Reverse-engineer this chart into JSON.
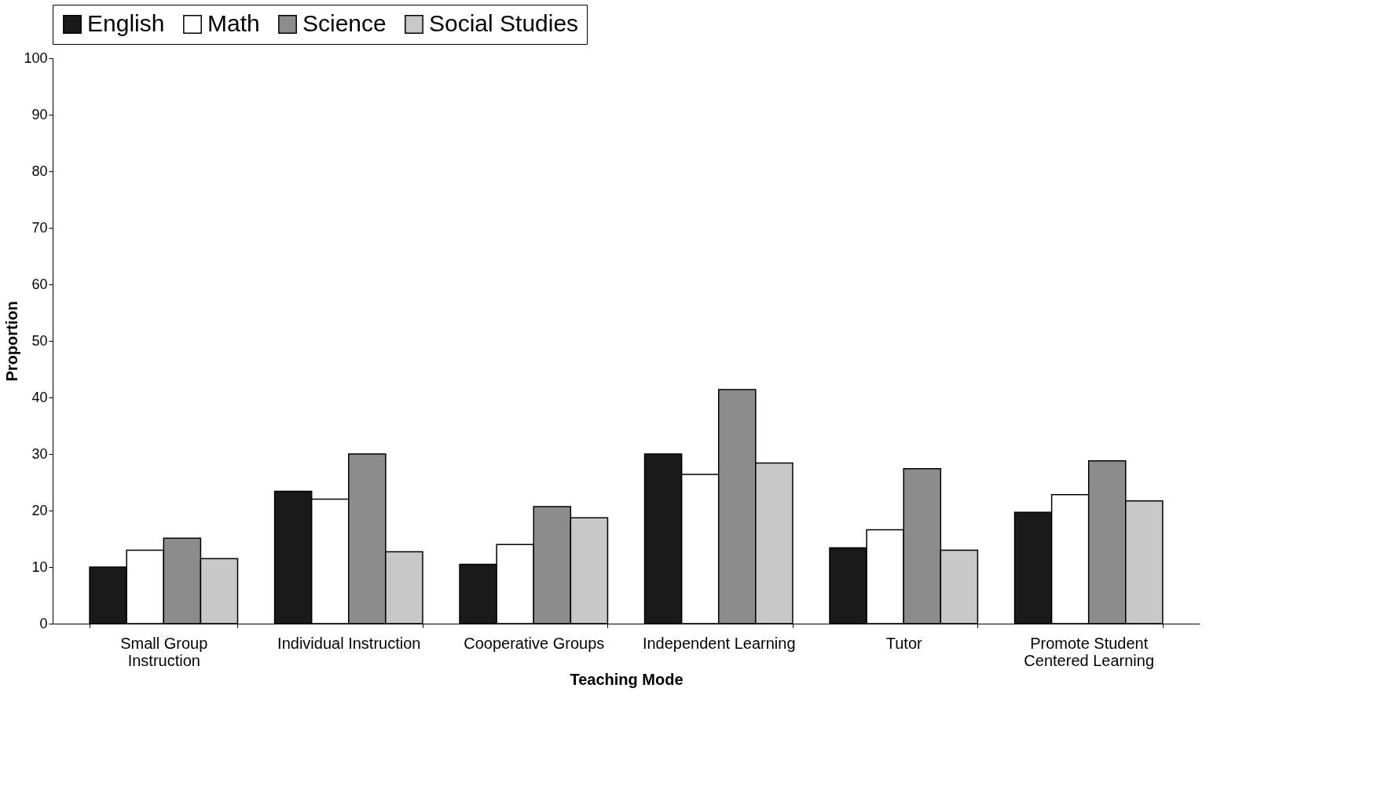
{
  "chart_data": {
    "type": "bar",
    "xlabel": "Teaching Mode",
    "ylabel": "Proportion",
    "categories": [
      "Small Group\nInstruction",
      "Individual Instruction",
      "Cooperative Groups",
      "Independent Learning",
      "Tutor",
      "Promote Student\nCentered Learning"
    ],
    "series": [
      {
        "name": "English",
        "color": "#1a1a1a",
        "values": [
          10,
          23.4,
          10.5,
          30,
          13.4,
          19.7
        ]
      },
      {
        "name": "Math",
        "color": "#ffffff",
        "values": [
          13,
          22,
          14,
          26.4,
          16.6,
          22.8
        ]
      },
      {
        "name": "Science",
        "color": "#8c8c8c",
        "values": [
          15.1,
          30,
          20.7,
          41.4,
          27.4,
          28.8
        ]
      },
      {
        "name": "Social Studies",
        "color": "#c8c8c8",
        "values": [
          11.5,
          12.7,
          18.7,
          28.4,
          13,
          21.7
        ]
      }
    ],
    "ylim": [
      0,
      100
    ],
    "yticks": [
      0,
      10,
      20,
      30,
      40,
      50,
      60,
      70,
      80,
      90,
      100
    ],
    "grid": false,
    "legend": "top"
  }
}
